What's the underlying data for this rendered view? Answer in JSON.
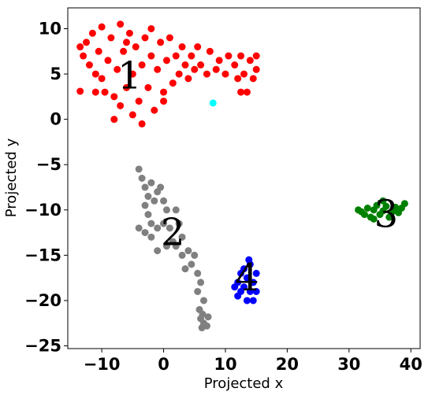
{
  "chart_data": {
    "type": "scatter",
    "title": "",
    "xlabel": "Projected x",
    "ylabel": "Projected y",
    "xlim": [
      -15.5,
      41.5
    ],
    "ylim": [
      -25.3,
      12.3
    ],
    "x_ticks": [
      -10,
      0,
      10,
      20,
      30,
      40
    ],
    "x_tick_labels": [
      "−10",
      "0",
      "10",
      "20",
      "30",
      "40"
    ],
    "y_ticks": [
      10,
      5,
      0,
      -5,
      -10,
      -15,
      -20,
      -25
    ],
    "y_tick_labels": [
      "10",
      "5",
      "0",
      "−5",
      "−10",
      "−15",
      "−20",
      "−25"
    ],
    "grid": false,
    "legend": "none",
    "series": [
      {
        "color": "#ff0000",
        "label": "1",
        "label_at": [
          -5.5,
          4.8
        ],
        "points": [
          [
            -13.5,
            8.0
          ],
          [
            -13.0,
            7.0
          ],
          [
            -12.5,
            8.5
          ],
          [
            -12.0,
            6.0
          ],
          [
            -11.5,
            9.5
          ],
          [
            -11.0,
            5.0
          ],
          [
            -10.5,
            7.5
          ],
          [
            -10.0,
            4.5
          ],
          [
            -10.0,
            10.2
          ],
          [
            -9.5,
            3.0
          ],
          [
            -9.0,
            6.5
          ],
          [
            -8.5,
            9.0
          ],
          [
            -8.0,
            2.5
          ],
          [
            -7.5,
            5.5
          ],
          [
            -7.0,
            10.5
          ],
          [
            -7.0,
            1.5
          ],
          [
            -6.5,
            7.5
          ],
          [
            -6.0,
            3.5
          ],
          [
            -5.5,
            9.5
          ],
          [
            -5.0,
            0.5
          ],
          [
            -5.0,
            5.0
          ],
          [
            -4.5,
            8.0
          ],
          [
            -4.0,
            2.0
          ],
          [
            -3.5,
            -0.5
          ],
          [
            -3.5,
            6.0
          ],
          [
            -3.0,
            9.0
          ],
          [
            -2.5,
            3.5
          ],
          [
            -2.0,
            7.0
          ],
          [
            -1.5,
            1.0
          ],
          [
            -1.0,
            5.5
          ],
          [
            -0.5,
            8.5
          ],
          [
            0.0,
            3.0
          ],
          [
            0.5,
            6.5
          ],
          [
            1.0,
            9.0
          ],
          [
            1.5,
            4.0
          ],
          [
            2.0,
            7.0
          ],
          [
            2.5,
            5.0
          ],
          [
            3.0,
            8.0
          ],
          [
            3.5,
            6.0
          ],
          [
            4.0,
            4.5
          ],
          [
            4.5,
            7.0
          ],
          [
            5.0,
            5.5
          ],
          [
            5.5,
            8.0
          ],
          [
            6.0,
            6.0
          ],
          [
            7.0,
            5.0
          ],
          [
            7.5,
            7.5
          ],
          [
            8.5,
            5.5
          ],
          [
            9.0,
            6.5
          ],
          [
            10.0,
            5.0
          ],
          [
            10.5,
            7.0
          ],
          [
            11.5,
            6.0
          ],
          [
            12.0,
            4.5
          ],
          [
            12.5,
            7.0
          ],
          [
            13.0,
            5.0
          ],
          [
            13.5,
            3.0
          ],
          [
            14.0,
            6.5
          ],
          [
            14.5,
            4.5
          ],
          [
            15.0,
            7.0
          ],
          [
            15.0,
            5.5
          ],
          [
            12.5,
            3.0
          ],
          [
            -13.5,
            3.1
          ],
          [
            -11.0,
            3.0
          ],
          [
            -8.0,
            0.0
          ],
          [
            -6.0,
            8.5
          ],
          [
            -2.0,
            10.0
          ],
          [
            0.0,
            2.0
          ]
        ]
      },
      {
        "color": "#808080",
        "label": "2",
        "label_at": [
          1.5,
          -12.5
        ],
        "points": [
          [
            -4.0,
            -5.5
          ],
          [
            -3.5,
            -6.5
          ],
          [
            -3.0,
            -7.5
          ],
          [
            -2.5,
            -8.5
          ],
          [
            -2.0,
            -7.0
          ],
          [
            -3.0,
            -9.5
          ],
          [
            -2.5,
            -10.5
          ],
          [
            -1.5,
            -9.0
          ],
          [
            -1.0,
            -8.0
          ],
          [
            -0.5,
            -7.5
          ],
          [
            0.0,
            -9.0
          ],
          [
            0.5,
            -10.0
          ],
          [
            -2.0,
            -11.5
          ],
          [
            -3.0,
            -12.5
          ],
          [
            -4.0,
            -12.0
          ],
          [
            -2.0,
            -13.0
          ],
          [
            -1.0,
            -12.0
          ],
          [
            0.0,
            -11.5
          ],
          [
            1.0,
            -12.0
          ],
          [
            1.5,
            -13.5
          ],
          [
            0.5,
            -14.0
          ],
          [
            -1.0,
            -14.5
          ],
          [
            2.0,
            -14.0
          ],
          [
            2.5,
            -11.5
          ],
          [
            3.0,
            -15.0
          ],
          [
            4.0,
            -14.5
          ],
          [
            3.5,
            -16.5
          ],
          [
            4.5,
            -16.0
          ],
          [
            5.5,
            -17.0
          ],
          [
            5.0,
            -15.0
          ],
          [
            6.0,
            -18.0
          ],
          [
            5.5,
            -19.0
          ],
          [
            6.5,
            -20.0
          ],
          [
            5.8,
            -21.0
          ],
          [
            6.3,
            -21.5
          ],
          [
            6.0,
            -22.0
          ],
          [
            6.5,
            -22.5
          ],
          [
            6.2,
            -23.0
          ],
          [
            7.0,
            -22.8
          ],
          [
            7.2,
            -21.8
          ],
          [
            3.0,
            -13.0
          ],
          [
            2.0,
            -10.0
          ]
        ]
      },
      {
        "color": "#008000",
        "label": "3",
        "label_at": [
          36.0,
          -10.5
        ],
        "points": [
          [
            31.5,
            -10.0
          ],
          [
            32.0,
            -10.2
          ],
          [
            32.5,
            -10.5
          ],
          [
            33.0,
            -9.8
          ],
          [
            33.5,
            -10.8
          ],
          [
            34.0,
            -10.0
          ],
          [
            34.5,
            -9.5
          ],
          [
            35.0,
            -10.5
          ],
          [
            35.5,
            -10.1
          ],
          [
            36.0,
            -9.6
          ],
          [
            36.5,
            -10.8
          ],
          [
            37.0,
            -10.2
          ],
          [
            37.5,
            -9.7
          ],
          [
            38.0,
            -10.3
          ],
          [
            38.5,
            -9.8
          ],
          [
            39.0,
            -9.3
          ],
          [
            34.0,
            -11.0
          ],
          [
            35.5,
            -9.0
          ]
        ]
      },
      {
        "color": "#0000ff",
        "label": "4",
        "label_at": [
          13.5,
          -17.5
        ],
        "points": [
          [
            12.0,
            -18.0
          ],
          [
            12.5,
            -17.0
          ],
          [
            12.5,
            -19.0
          ],
          [
            13.0,
            -16.5
          ],
          [
            13.0,
            -18.5
          ],
          [
            13.5,
            -20.0
          ],
          [
            13.5,
            -17.5
          ],
          [
            14.0,
            -19.0
          ],
          [
            14.0,
            -16.0
          ],
          [
            14.5,
            -18.0
          ],
          [
            14.5,
            -20.0
          ],
          [
            15.0,
            -17.0
          ],
          [
            15.0,
            -19.0
          ],
          [
            11.5,
            -18.5
          ],
          [
            12.0,
            -19.5
          ],
          [
            13.8,
            -15.5
          ]
        ]
      },
      {
        "color": "#00ffff",
        "label": "",
        "points": [
          [
            8.0,
            1.8
          ]
        ]
      }
    ]
  }
}
